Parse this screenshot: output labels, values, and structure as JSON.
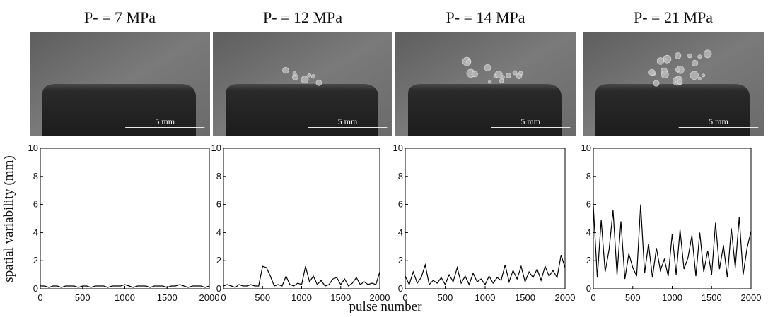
{
  "figure": {
    "xlabel": "pulse number",
    "ylabel": "spatial variability (mm)"
  },
  "chart_data": [
    {
      "type": "line",
      "title": "P- = 7 MPa",
      "scale_bar": "5 mm",
      "color": "#000000",
      "x": [
        0,
        50,
        100,
        150,
        200,
        250,
        300,
        350,
        400,
        450,
        500,
        550,
        600,
        650,
        700,
        750,
        800,
        850,
        900,
        950,
        1000,
        1050,
        1100,
        1150,
        1200,
        1250,
        1300,
        1350,
        1400,
        1450,
        1500,
        1550,
        1600,
        1650,
        1700,
        1750,
        1800,
        1850,
        1900,
        1950,
        2000
      ],
      "values": [
        0.2,
        0.2,
        0.1,
        0.2,
        0.2,
        0.1,
        0.2,
        0.2,
        0.2,
        0.1,
        0.2,
        0.2,
        0.1,
        0.2,
        0.2,
        0.2,
        0.1,
        0.2,
        0.2,
        0.2,
        0.3,
        0.2,
        0.1,
        0.2,
        0.2,
        0.2,
        0.1,
        0.2,
        0.2,
        0.2,
        0.1,
        0.2,
        0.2,
        0.3,
        0.2,
        0.1,
        0.2,
        0.2,
        0.2,
        0.1,
        0.2
      ],
      "xlim": [
        0,
        2000
      ],
      "ylim": [
        0,
        10
      ],
      "xticks": [
        0,
        500,
        1000,
        1500,
        2000
      ],
      "yticks": [
        0,
        2,
        4,
        6,
        8,
        10
      ]
    },
    {
      "type": "line",
      "title": "P- = 12 MPa",
      "scale_bar": "5 mm",
      "color": "#000000",
      "x": [
        0,
        50,
        100,
        150,
        200,
        250,
        300,
        350,
        400,
        450,
        500,
        550,
        600,
        650,
        700,
        750,
        800,
        850,
        900,
        950,
        1000,
        1050,
        1100,
        1150,
        1200,
        1250,
        1300,
        1350,
        1400,
        1450,
        1500,
        1550,
        1600,
        1650,
        1700,
        1750,
        1800,
        1850,
        1900,
        1950,
        2000
      ],
      "values": [
        0.2,
        0.3,
        0.2,
        0.1,
        0.3,
        0.2,
        0.2,
        0.3,
        0.2,
        0.2,
        1.6,
        1.5,
        0.9,
        0.2,
        0.3,
        0.2,
        0.9,
        0.3,
        0.2,
        0.4,
        0.3,
        1.6,
        0.5,
        0.9,
        0.3,
        0.6,
        0.2,
        0.3,
        0.7,
        0.8,
        0.3,
        0.7,
        0.2,
        0.4,
        0.8,
        0.3,
        0.5,
        0.3,
        0.4,
        0.3,
        1.2
      ],
      "xlim": [
        0,
        2000
      ],
      "ylim": [
        0,
        10
      ],
      "xticks": [
        0,
        500,
        1000,
        1500,
        2000
      ],
      "yticks": [
        0,
        2,
        4,
        6,
        8,
        10
      ]
    },
    {
      "type": "line",
      "title": "P- = 14 MPa",
      "scale_bar": "5 mm",
      "color": "#000000",
      "x": [
        0,
        50,
        100,
        150,
        200,
        250,
        300,
        350,
        400,
        450,
        500,
        550,
        600,
        650,
        700,
        750,
        800,
        850,
        900,
        950,
        1000,
        1050,
        1100,
        1150,
        1200,
        1250,
        1300,
        1350,
        1400,
        1450,
        1500,
        1550,
        1600,
        1650,
        1700,
        1750,
        1800,
        1850,
        1900,
        1950,
        2000
      ],
      "values": [
        0.9,
        0.3,
        1.2,
        0.4,
        0.8,
        1.7,
        0.3,
        0.6,
        0.4,
        0.8,
        0.3,
        1.0,
        0.5,
        1.5,
        0.4,
        0.9,
        0.3,
        1.1,
        0.5,
        0.7,
        0.3,
        0.9,
        0.4,
        0.8,
        0.6,
        1.7,
        0.5,
        1.3,
        0.7,
        1.6,
        0.5,
        1.2,
        0.8,
        1.4,
        0.6,
        1.6,
        0.9,
        1.3,
        0.8,
        2.4,
        1.5
      ],
      "xlim": [
        0,
        2000
      ],
      "ylim": [
        0,
        10
      ],
      "xticks": [
        0,
        500,
        1000,
        1500,
        2000
      ],
      "yticks": [
        0,
        2,
        4,
        6,
        8,
        10
      ]
    },
    {
      "type": "line",
      "title": "P- = 21 MPa",
      "scale_bar": "5 mm",
      "color": "#000000",
      "x": [
        0,
        50,
        100,
        150,
        200,
        250,
        300,
        350,
        400,
        450,
        500,
        550,
        600,
        650,
        700,
        750,
        800,
        850,
        900,
        950,
        1000,
        1050,
        1100,
        1150,
        1200,
        1250,
        1300,
        1350,
        1400,
        1450,
        1500,
        1550,
        1600,
        1650,
        1700,
        1750,
        1800,
        1850,
        1900,
        1950,
        2000
      ],
      "values": [
        5.9,
        0.8,
        4.9,
        1.2,
        2.8,
        5.6,
        1.0,
        4.8,
        0.7,
        2.5,
        1.5,
        0.9,
        6.0,
        1.1,
        3.2,
        0.8,
        2.9,
        1.3,
        2.1,
        0.9,
        3.9,
        1.0,
        4.2,
        1.4,
        2.2,
        3.8,
        0.9,
        4.0,
        1.2,
        2.7,
        1.0,
        4.7,
        1.4,
        3.1,
        0.8,
        4.3,
        1.5,
        5.1,
        1.0,
        2.9,
        4.1
      ],
      "xlim": [
        0,
        2000
      ],
      "ylim": [
        0,
        10
      ],
      "xticks": [
        0,
        500,
        1000,
        1500,
        2000
      ],
      "yticks": [
        0,
        2,
        4,
        6,
        8,
        10
      ]
    }
  ]
}
